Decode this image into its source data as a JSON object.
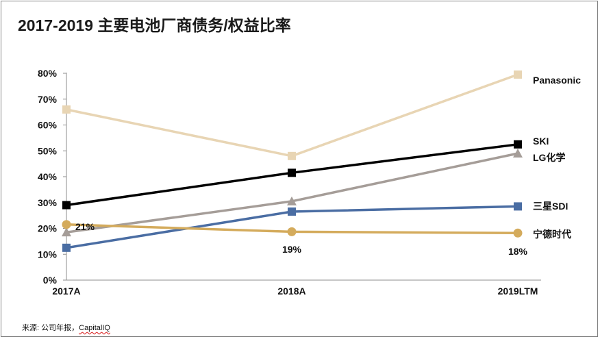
{
  "title": "2017-2019 主要电池厂商债务/权益比率",
  "source_prefix": "来源: 公司年报，",
  "source_name": "CapitalIQ",
  "chart_data": {
    "type": "line",
    "title": "2017-2019 主要电池厂商债务/权益比率",
    "categories": [
      "2017A",
      "2018A",
      "2019LTM"
    ],
    "yticks": [
      "0%",
      "10%",
      "20%",
      "30%",
      "40%",
      "50%",
      "60%",
      "70%",
      "80%"
    ],
    "ylim": [
      0,
      80
    ],
    "series": [
      {
        "name": "Panasonic",
        "values": [
          66,
          48,
          79.5
        ],
        "color": "#e8d5b4",
        "marker": "square"
      },
      {
        "name": "SKI",
        "values": [
          29,
          41.5,
          52.5
        ],
        "color": "#000000",
        "marker": "square"
      },
      {
        "name": "LG化学",
        "values": [
          18.5,
          30.5,
          49
        ],
        "color": "#a59d98",
        "marker": "triangle"
      },
      {
        "name": "三星SDI",
        "values": [
          12.5,
          26.5,
          28.5
        ],
        "color": "#4a6da3",
        "marker": "square"
      },
      {
        "name": "宁德时代",
        "values": [
          21.5,
          18.7,
          18.2
        ],
        "color": "#d4ab5c",
        "marker": "circle"
      }
    ],
    "data_labels": [
      "21%",
      "19%",
      "18%"
    ]
  }
}
